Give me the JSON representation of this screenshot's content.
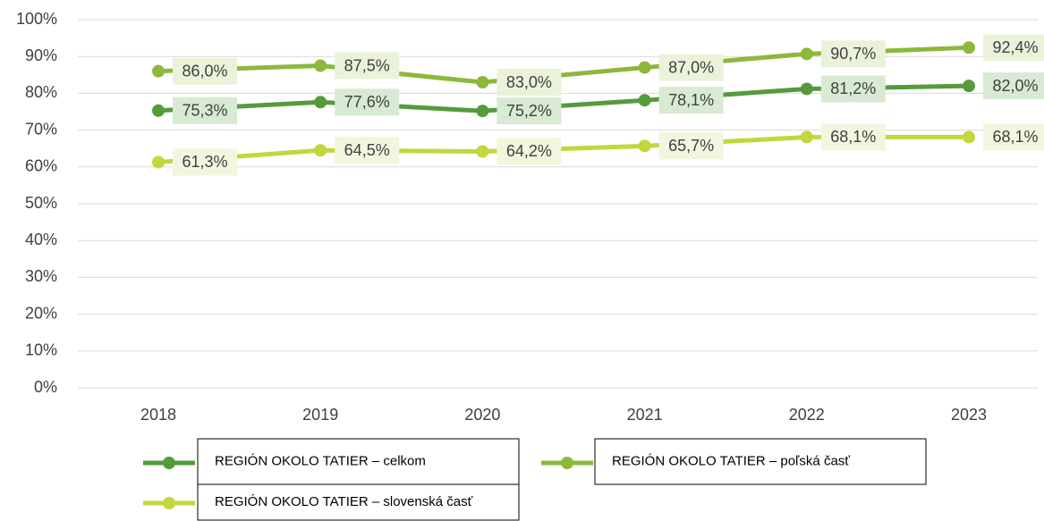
{
  "chart_data": {
    "type": "line",
    "categories": [
      "2018",
      "2019",
      "2020",
      "2021",
      "2022",
      "2023"
    ],
    "series": [
      {
        "name": "REGIÓN OKOLO TATIER – celkom",
        "color": "#559b3c",
        "label_bg": "#d8ead3",
        "values": [
          75.3,
          77.6,
          75.2,
          78.1,
          81.2,
          82.0
        ],
        "value_labels": [
          "75,3%",
          "77,6%",
          "75,2%",
          "78,1%",
          "81,2%",
          "82,0%"
        ]
      },
      {
        "name": "REGIÓN OKOLO TATIER – poľská časť",
        "color": "#8cb83c",
        "label_bg": "#ebf2da",
        "values": [
          86.0,
          87.5,
          83.0,
          87.0,
          90.7,
          92.4
        ],
        "value_labels": [
          "86,0%",
          "87,5%",
          "83,0%",
          "87,0%",
          "90,7%",
          "92,4%"
        ]
      },
      {
        "name": "REGIÓN OKOLO TATIER – slovenská časť",
        "color": "#c3d63c",
        "label_bg": "#f3f6de",
        "values": [
          61.3,
          64.5,
          64.2,
          65.7,
          68.1,
          68.1
        ],
        "value_labels": [
          "61,3%",
          "64,5%",
          "64,2%",
          "65,7%",
          "68,1%",
          "68,1%"
        ]
      }
    ],
    "ylim": [
      0,
      100
    ],
    "yticks": [
      {
        "value": 0,
        "label": "0%"
      },
      {
        "value": 10,
        "label": "10%"
      },
      {
        "value": 20,
        "label": "20%"
      },
      {
        "value": 30,
        "label": "30%"
      },
      {
        "value": 40,
        "label": "40%"
      },
      {
        "value": 50,
        "label": "50%"
      },
      {
        "value": 60,
        "label": "60%"
      },
      {
        "value": 70,
        "label": "70%"
      },
      {
        "value": 80,
        "label": "80%"
      },
      {
        "value": 90,
        "label": "90%"
      },
      {
        "value": 100,
        "label": "100%"
      }
    ],
    "grid": true
  }
}
